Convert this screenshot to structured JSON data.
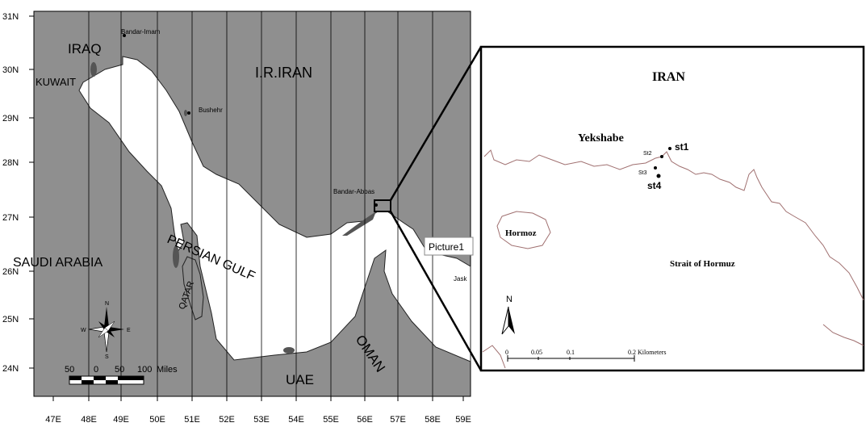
{
  "main_map": {
    "lat_labels": [
      "31N",
      "30N",
      "29N",
      "28N",
      "27N",
      "26N",
      "25N",
      "24N"
    ],
    "lon_labels": [
      "47E",
      "48E",
      "49E",
      "50E",
      "51E",
      "52E",
      "53E",
      "54E",
      "55E",
      "56E",
      "57E",
      "58E",
      "59E"
    ],
    "countries": {
      "iraq": "IRAQ",
      "kuwait": "KUWAIT",
      "iran": "I.R.IRAN",
      "saudi": "SAUDI ARABIA",
      "qatar": "QATAR",
      "uae": "UAE",
      "oman": "OMAN"
    },
    "water_label": "PERSIAN GULF",
    "cities": {
      "bandar_imam": "Bandar-Imam",
      "bushehr": "Bushehr",
      "bandar_abbas": "Bandar-Abbas",
      "jask": "Jask"
    },
    "scale": {
      "t50a": "50",
      "t0": "0",
      "t50b": "50",
      "t100": "100",
      "unit": "Miles"
    },
    "compass": {
      "n": "N",
      "s": "S",
      "e": "E",
      "w": "W"
    },
    "callout_label": "Picture1"
  },
  "inset": {
    "country": "IRAN",
    "place": "Yekshabe",
    "island": "Hormoz",
    "strait": "Strait of Hormuz",
    "north": "N",
    "stations": {
      "st1": "st1",
      "st2": "St2",
      "st3": "St3",
      "st4": "st4"
    },
    "scale": {
      "t0": "0",
      "t1": "0.05",
      "t2": "0.1",
      "t3": "0.2 Kilometers"
    }
  },
  "colors": {
    "land": "#8f8f8f",
    "sea": "#ffffff",
    "inset_coast": "#a07070"
  }
}
